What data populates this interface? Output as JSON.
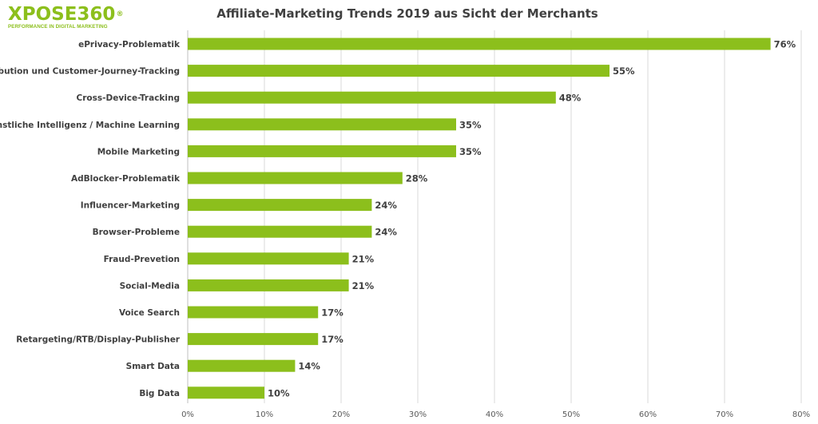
{
  "logo": {
    "name": "XPOSE360",
    "mark": "®",
    "tagline": "PERFORMANCE IN DIGITAL MARKETING"
  },
  "colors": {
    "bar": "#8cbf1c",
    "logo": "#8cbf1c",
    "text": "#404040",
    "grid": "#d9d9d9"
  },
  "chart_data": {
    "type": "bar",
    "orientation": "horizontal",
    "title": "Affiliate-Marketing Trends 2019 aus Sicht der Merchants",
    "xlabel": "",
    "ylabel": "",
    "xlim": [
      0,
      80
    ],
    "grid": true,
    "legend": "none",
    "categories": [
      "ePrivacy-Problematik",
      "Attribution und Customer-Journey-Tracking",
      "Cross-Device-Tracking",
      "AI - Künstliche Intelligenz / Machine Learning",
      "Mobile Marketing",
      "AdBlocker-Problematik",
      "Influencer-Marketing",
      "Browser-Probleme",
      "Fraud-Prevetion",
      "Social-Media",
      "Voice Search",
      "Retargeting/RTB/Display-Publisher",
      "Smart Data",
      "Big Data"
    ],
    "values": [
      76,
      55,
      48,
      35,
      35,
      28,
      24,
      24,
      21,
      21,
      17,
      17,
      14,
      10
    ],
    "value_labels": [
      "76%",
      "55%",
      "48%",
      "35%",
      "35%",
      "28%",
      "24%",
      "24%",
      "21%",
      "21%",
      "17%",
      "17%",
      "14%",
      "10%"
    ],
    "ticks": [
      0,
      10,
      20,
      30,
      40,
      50,
      60,
      70,
      80
    ],
    "tick_labels": [
      "0%",
      "10%",
      "20%",
      "30%",
      "40%",
      "50%",
      "60%",
      "70%",
      "80%"
    ]
  }
}
